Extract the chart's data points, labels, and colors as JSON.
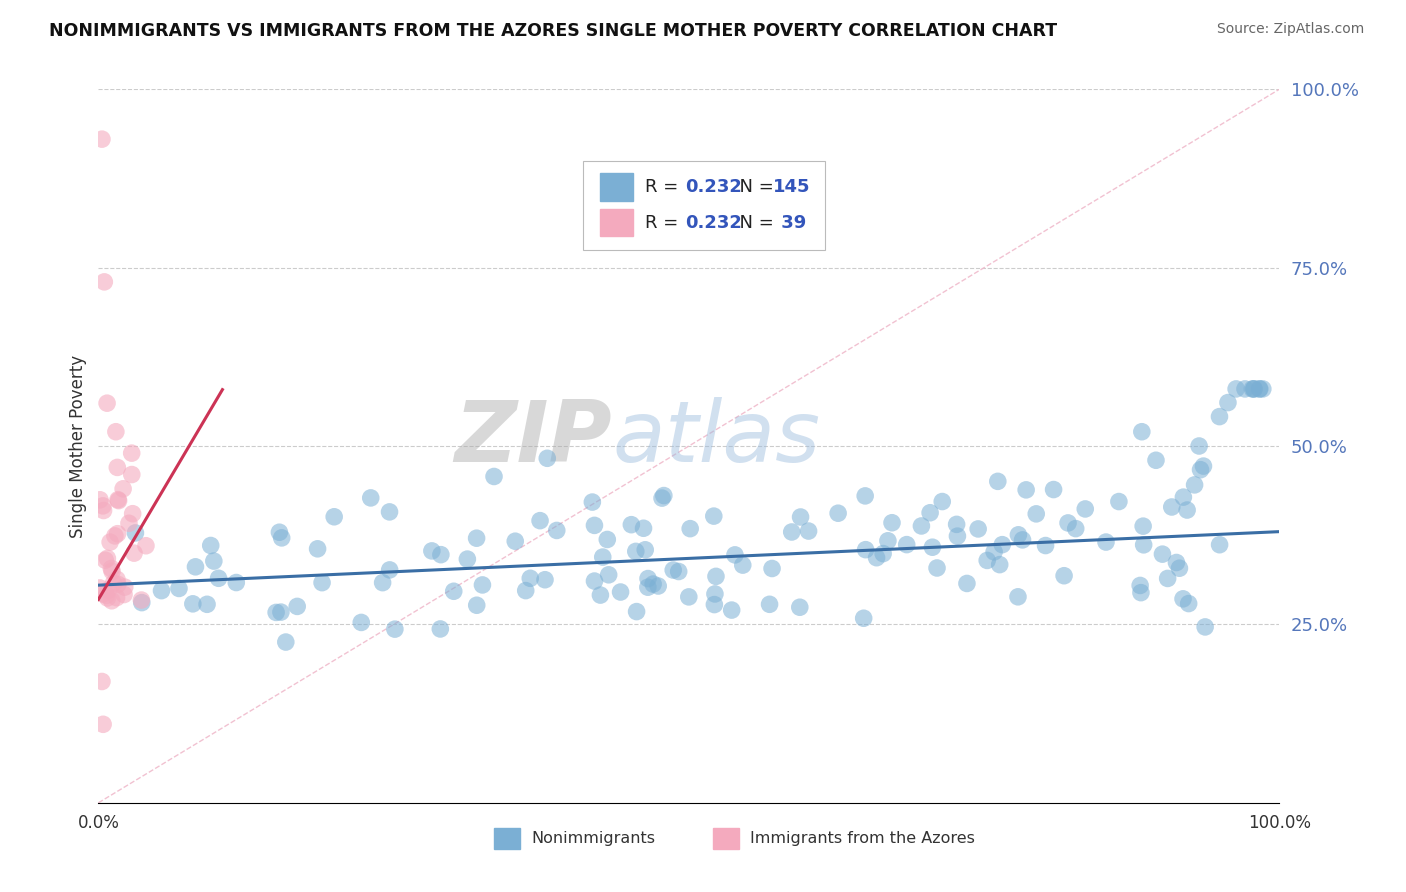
{
  "title": "NONIMMIGRANTS VS IMMIGRANTS FROM THE AZORES SINGLE MOTHER POVERTY CORRELATION CHART",
  "source": "Source: ZipAtlas.com",
  "ylabel": "Single Mother Poverty",
  "legend_label1": "Nonimmigrants",
  "legend_label2": "Immigrants from the Azores",
  "blue_color": "#7BAFD4",
  "pink_color": "#F4AABE",
  "trend_blue": "#3A6EA5",
  "trend_pink": "#CC3355",
  "diag_color": "#F0BBCC",
  "watermark_zip_color": "#AAAAAA",
  "watermark_atlas_color": "#99BBDD",
  "right_tick_color": "#5577BB",
  "stat_color": "#3355BB",
  "background": "#FFFFFF",
  "N_blue": 145,
  "N_pink": 39,
  "R_val": "0.232",
  "blue_trend_intercept": 0.305,
  "blue_trend_slope": 0.075,
  "pink_trend_intercept": 0.285,
  "pink_trend_slope": 2.8
}
